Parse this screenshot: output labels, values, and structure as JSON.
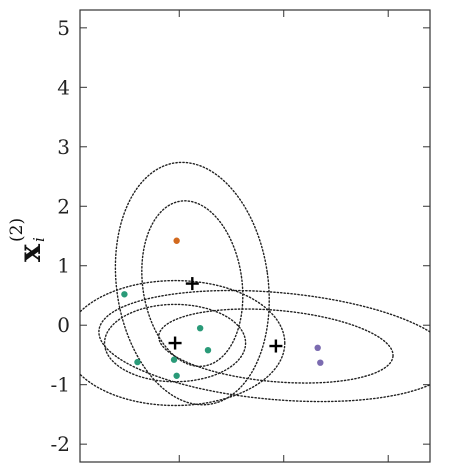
{
  "chart_data": {
    "type": "scatter",
    "title": "",
    "ylabel": {
      "base": "x",
      "superscript": "(2)",
      "subscript": "i"
    },
    "xlabel": "",
    "ylim": [
      -2.3,
      5.3
    ],
    "xlim": [
      -1.9,
      4.8
    ],
    "yticks": [
      "-2",
      "-1",
      "0",
      "1",
      "2",
      "3",
      "4",
      "5"
    ],
    "grid": false,
    "legend": "none",
    "series": [
      {
        "color": "#2a9a78",
        "points": [
          [
            -1.05,
            0.52
          ],
          [
            -0.8,
            -0.62
          ],
          [
            -0.1,
            -0.58
          ],
          [
            -0.05,
            -0.85
          ],
          [
            0.4,
            -0.05
          ],
          [
            0.55,
            -0.42
          ]
        ]
      },
      {
        "color": "#d2691e",
        "points": [
          [
            -0.05,
            1.42
          ]
        ]
      },
      {
        "color": "#7b6bb0",
        "points": [
          [
            2.65,
            -0.38
          ],
          [
            2.7,
            -0.63
          ]
        ]
      }
    ],
    "centers": [
      {
        "marker": "+",
        "x": 0.25,
        "y": 0.7
      },
      {
        "marker": "+",
        "x": -0.08,
        "y": -0.3
      },
      {
        "marker": "+",
        "x": 1.85,
        "y": -0.35
      }
    ],
    "ellipses": [
      {
        "cx": 0.25,
        "cy": 0.7,
        "rx": 1.45,
        "ry": 2.05,
        "angle_deg": 8
      },
      {
        "cx": 0.25,
        "cy": 0.7,
        "rx": 0.95,
        "ry": 1.4,
        "angle_deg": 8
      },
      {
        "cx": -0.08,
        "cy": -0.3,
        "rx": 2.1,
        "ry": 1.05,
        "angle_deg": 0
      },
      {
        "cx": -0.08,
        "cy": -0.3,
        "rx": 1.35,
        "ry": 0.65,
        "angle_deg": 0
      },
      {
        "cx": 1.85,
        "cy": -0.35,
        "rx": 3.4,
        "ry": 0.9,
        "angle_deg": -5
      },
      {
        "cx": 1.85,
        "cy": -0.35,
        "rx": 2.25,
        "ry": 0.6,
        "angle_deg": -5
      }
    ]
  }
}
